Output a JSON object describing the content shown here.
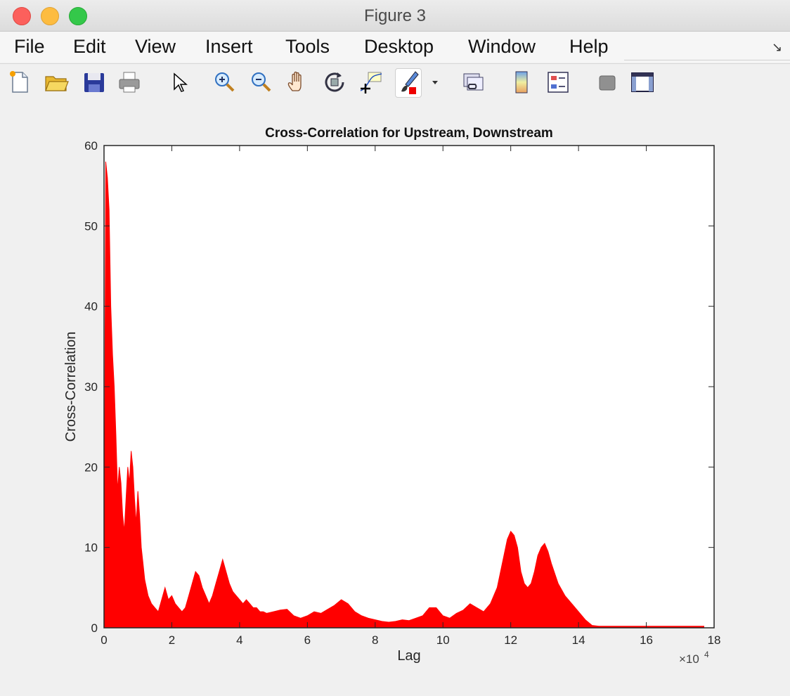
{
  "window": {
    "title": "Figure 3"
  },
  "menu": [
    "File",
    "Edit",
    "View",
    "Insert",
    "Tools",
    "Desktop",
    "Window",
    "Help"
  ],
  "toolbar": {
    "tools": [
      "new-figure",
      "open-file",
      "save",
      "print",
      "edit-plot",
      "zoom-in",
      "zoom-out",
      "pan",
      "rotate-3d",
      "data-cursor",
      "brush",
      "link-plot",
      "colorbar",
      "legend",
      "hide-plot-tools",
      "show-plot-tools"
    ]
  },
  "colors": {
    "area": "#ff0000",
    "axes_bg": "#ffffff",
    "figure_bg": "#f0f0f0"
  },
  "chart_data": {
    "type": "area",
    "title": "Cross-Correlation for Upstream, Downstream",
    "xlabel": "Lag",
    "ylabel": "Cross-Correlation",
    "x_exponent_label": "×10",
    "x_exponent_power": "4",
    "xlim": [
      0,
      18
    ],
    "ylim": [
      0,
      60
    ],
    "xticks": [
      "0",
      "2",
      "4",
      "6",
      "8",
      "10",
      "12",
      "14",
      "16",
      "18"
    ],
    "yticks": [
      "0",
      "10",
      "20",
      "30",
      "40",
      "50",
      "60"
    ],
    "grid": false,
    "x": [
      0,
      0.05,
      0.1,
      0.15,
      0.2,
      0.25,
      0.3,
      0.35,
      0.4,
      0.45,
      0.5,
      0.55,
      0.6,
      0.65,
      0.7,
      0.75,
      0.8,
      0.85,
      0.9,
      0.95,
      1.0,
      1.05,
      1.1,
      1.15,
      1.2,
      1.25,
      1.3,
      1.4,
      1.5,
      1.6,
      1.7,
      1.8,
      1.9,
      2.0,
      2.1,
      2.2,
      2.3,
      2.4,
      2.5,
      2.6,
      2.7,
      2.8,
      2.9,
      3.0,
      3.1,
      3.2,
      3.3,
      3.4,
      3.5,
      3.6,
      3.7,
      3.8,
      3.9,
      4.0,
      4.1,
      4.2,
      4.3,
      4.4,
      4.5,
      4.6,
      4.7,
      4.8,
      5.0,
      5.2,
      5.4,
      5.6,
      5.8,
      6.0,
      6.2,
      6.4,
      6.6,
      6.8,
      7.0,
      7.2,
      7.4,
      7.6,
      7.8,
      8.0,
      8.2,
      8.4,
      8.6,
      8.8,
      9.0,
      9.2,
      9.4,
      9.6,
      9.8,
      10.0,
      10.2,
      10.4,
      10.6,
      10.8,
      11.0,
      11.2,
      11.4,
      11.6,
      11.8,
      11.9,
      12.0,
      12.1,
      12.2,
      12.3,
      12.4,
      12.5,
      12.6,
      12.7,
      12.8,
      12.9,
      13.0,
      13.1,
      13.2,
      13.4,
      13.6,
      13.8,
      14.0,
      14.2,
      14.4,
      14.6,
      15.0,
      16.0,
      17.0,
      17.7
    ],
    "y": [
      0,
      58,
      56,
      52,
      40,
      34,
      30,
      24,
      17,
      20,
      18,
      14,
      12,
      16,
      20,
      18,
      22,
      20,
      16,
      13,
      17,
      14,
      10,
      8,
      6,
      5,
      4,
      3,
      2.5,
      2,
      3.5,
      5,
      3.5,
      4,
      3,
      2.5,
      2,
      2.5,
      4,
      5.5,
      7,
      6.5,
      5,
      4,
      3,
      4,
      5.5,
      7,
      8.5,
      7,
      5.5,
      4.5,
      4,
      3.5,
      3,
      3.5,
      3,
      2.5,
      2.5,
      2,
      2,
      1.8,
      2,
      2.2,
      2.3,
      1.5,
      1.2,
      1.5,
      2,
      1.8,
      2.3,
      2.8,
      3.5,
      3,
      2,
      1.5,
      1.2,
      1,
      0.8,
      0.7,
      0.8,
      1,
      0.9,
      1.2,
      1.5,
      2.5,
      2.5,
      1.5,
      1.2,
      1.8,
      2.2,
      3,
      2.5,
      2,
      3,
      5,
      9,
      11,
      12,
      11.5,
      10,
      7,
      5.5,
      5,
      5.5,
      7,
      9,
      10,
      10.5,
      9.5,
      8,
      5.5,
      4,
      3,
      2,
      1,
      0.3,
      0.2,
      0.2,
      0.2,
      0.2,
      0.2
    ]
  }
}
